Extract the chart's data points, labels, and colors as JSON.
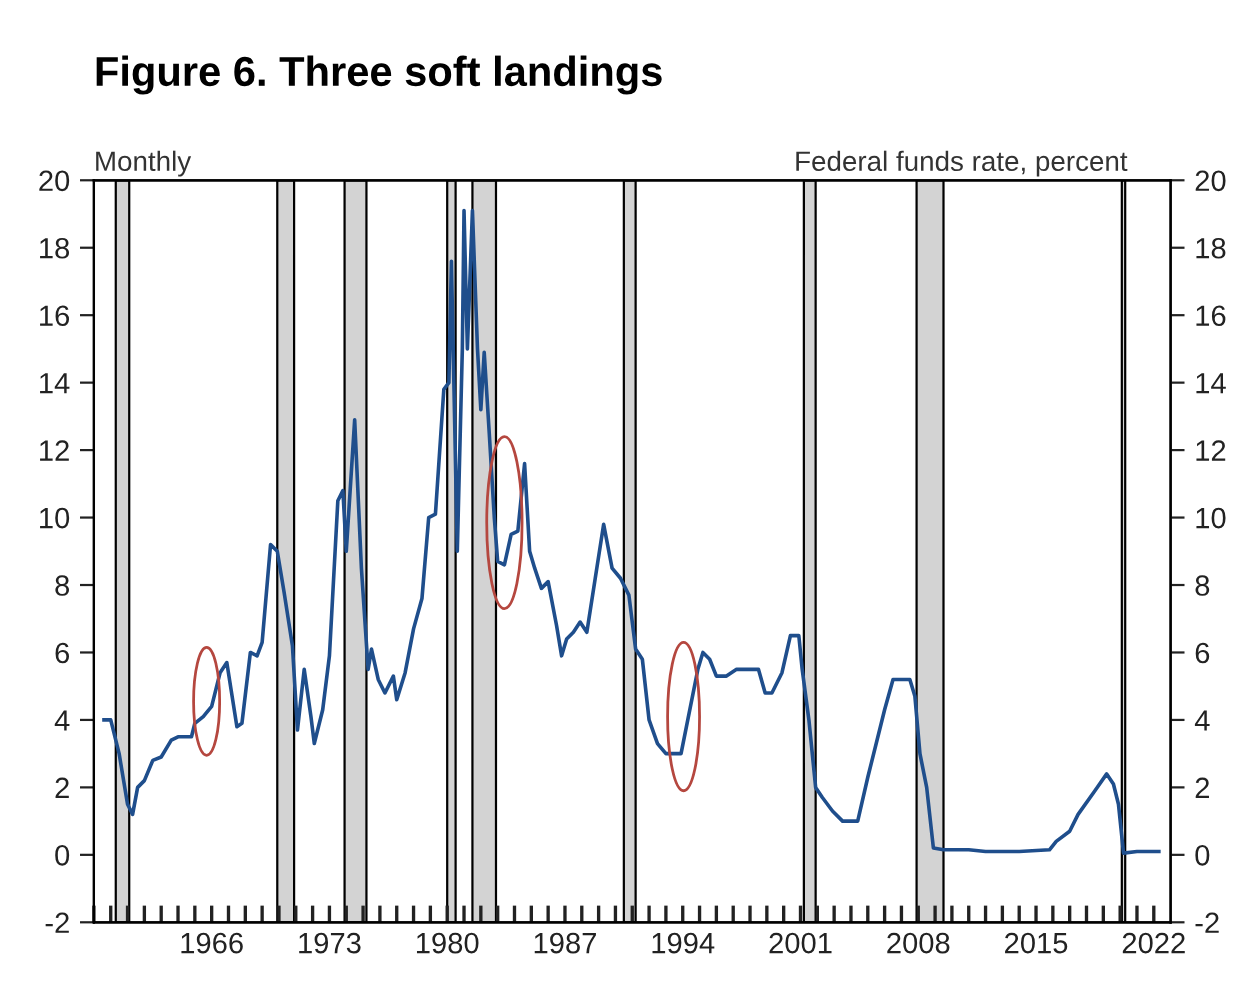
{
  "chart_data": {
    "type": "line",
    "title": "Figure 6. Three soft landings",
    "annotations": [
      "Monthly",
      "Federal funds rate, percent"
    ],
    "series": [
      {
        "color": "#1f4e8c",
        "x": [
          1959.6,
          1960.0,
          1960.5,
          1961.0,
          1961.3,
          1961.6,
          1962.0,
          1962.5,
          1963.0,
          1963.6,
          1964.0,
          1964.8,
          1965.0,
          1965.5,
          1966.0,
          1966.5,
          1966.9,
          1967.5,
          1967.8,
          1968.3,
          1968.7,
          1969.0,
          1969.5,
          1969.9,
          1970.3,
          1970.8,
          1971.1,
          1971.5,
          1971.9,
          1972.1,
          1972.6,
          1973.0,
          1973.5,
          1973.8,
          1974.0,
          1974.5,
          1974.9,
          1975.3,
          1975.5,
          1975.9,
          1976.3,
          1976.8,
          1977.0,
          1977.5,
          1978.0,
          1978.5,
          1978.9,
          1979.3,
          1979.8,
          1980.1,
          1980.25,
          1980.6,
          1980.9,
          1981.0,
          1981.2,
          1981.5,
          1981.8,
          1982.0,
          1982.2,
          1982.5,
          1982.8,
          1983.0,
          1983.4,
          1983.8,
          1984.2,
          1984.6,
          1984.9,
          1985.2,
          1985.6,
          1986.0,
          1986.5,
          1986.8,
          1987.1,
          1987.5,
          1987.9,
          1988.3,
          1988.8,
          1989.3,
          1989.8,
          1990.3,
          1990.8,
          1991.2,
          1991.6,
          1992.0,
          1992.5,
          1993.0,
          1993.9,
          1994.3,
          1994.9,
          1995.2,
          1995.6,
          1996.0,
          1996.6,
          1997.2,
          1998.5,
          1998.9,
          1999.3,
          1999.9,
          2000.4,
          2000.9,
          2001.1,
          2001.5,
          2001.9,
          2002.3,
          2002.9,
          2003.5,
          2004.4,
          2005.0,
          2006.0,
          2006.5,
          2007.5,
          2007.8,
          2008.1,
          2008.5,
          2008.9,
          2009.5,
          2011.0,
          2012.0,
          2014.0,
          2015.8,
          2016.2,
          2017.0,
          2017.5,
          2018.5,
          2019.2,
          2019.6,
          2019.9,
          2020.2,
          2021.0,
          2022.0,
          2022.3
        ],
        "values": [
          4.0,
          4.0,
          3.0,
          1.5,
          1.2,
          2.0,
          2.2,
          2.8,
          2.9,
          3.4,
          3.5,
          3.5,
          3.9,
          4.1,
          4.4,
          5.4,
          5.7,
          3.8,
          3.9,
          6.0,
          5.9,
          6.3,
          9.2,
          9.0,
          7.8,
          6.2,
          3.7,
          5.5,
          4.1,
          3.3,
          4.3,
          5.9,
          10.5,
          10.8,
          9.0,
          12.9,
          8.5,
          5.5,
          6.1,
          5.2,
          4.8,
          5.3,
          4.6,
          5.4,
          6.7,
          7.6,
          10.0,
          10.1,
          13.8,
          14.0,
          17.6,
          9.0,
          15.0,
          19.1,
          15.0,
          19.1,
          15.0,
          13.2,
          14.9,
          12.5,
          10.0,
          8.7,
          8.6,
          9.5,
          9.6,
          11.6,
          9.0,
          8.5,
          7.9,
          8.1,
          6.8,
          5.9,
          6.4,
          6.6,
          6.9,
          6.6,
          8.2,
          9.8,
          8.5,
          8.2,
          7.7,
          6.1,
          5.8,
          4.0,
          3.3,
          3.0,
          3.0,
          4.0,
          5.5,
          6.0,
          5.8,
          5.3,
          5.3,
          5.5,
          5.5,
          4.8,
          4.8,
          5.4,
          6.5,
          6.5,
          5.5,
          4.0,
          2.0,
          1.7,
          1.3,
          1.0,
          1.0,
          2.3,
          4.3,
          5.2,
          5.2,
          4.7,
          3.0,
          2.0,
          0.2,
          0.15,
          0.15,
          0.1,
          0.1,
          0.15,
          0.4,
          0.7,
          1.2,
          1.9,
          2.4,
          2.1,
          1.5,
          0.05,
          0.1,
          0.1,
          0.1
        ]
      }
    ],
    "xlim": [
      1959,
      2023
    ],
    "xticks": [
      {
        "value": 1959,
        "label": null
      },
      {
        "value": 1960,
        "label": null
      },
      {
        "value": 1961,
        "label": null
      },
      {
        "value": 1962,
        "label": null
      },
      {
        "value": 1963,
        "label": null
      },
      {
        "value": 1964,
        "label": null
      },
      {
        "value": 1965,
        "label": null
      },
      1966,
      {
        "value": 1967,
        "label": null
      },
      {
        "value": 1968,
        "label": null
      },
      {
        "value": 1969,
        "label": null
      },
      {
        "value": 1970,
        "label": null
      },
      {
        "value": 1971,
        "label": null
      },
      {
        "value": 1972,
        "label": null
      },
      1973,
      {
        "value": 1974,
        "label": null
      },
      {
        "value": 1975,
        "label": null
      },
      {
        "value": 1976,
        "label": null
      },
      {
        "value": 1977,
        "label": null
      },
      {
        "value": 1978,
        "label": null
      },
      {
        "value": 1979,
        "label": null
      },
      1980,
      {
        "value": 1981,
        "label": null
      },
      {
        "value": 1982,
        "label": null
      },
      {
        "value": 1983,
        "label": null
      },
      {
        "value": 1984,
        "label": null
      },
      {
        "value": 1985,
        "label": null
      },
      {
        "value": 1986,
        "label": null
      },
      1987,
      {
        "value": 1988,
        "label": null
      },
      {
        "value": 1989,
        "label": null
      },
      {
        "value": 1990,
        "label": null
      },
      {
        "value": 1991,
        "label": null
      },
      {
        "value": 1992,
        "label": null
      },
      {
        "value": 1993,
        "label": null
      },
      1994,
      {
        "value": 1995,
        "label": null
      },
      {
        "value": 1996,
        "label": null
      },
      {
        "value": 1997,
        "label": null
      },
      {
        "value": 1998,
        "label": null
      },
      {
        "value": 1999,
        "label": null
      },
      {
        "value": 2000,
        "label": null
      },
      2001,
      {
        "value": 2002,
        "label": null
      },
      {
        "value": 2003,
        "label": null
      },
      {
        "value": 2004,
        "label": null
      },
      {
        "value": 2005,
        "label": null
      },
      {
        "value": 2006,
        "label": null
      },
      {
        "value": 2007,
        "label": null
      },
      2008,
      {
        "value": 2009,
        "label": null
      },
      {
        "value": 2010,
        "label": null
      },
      {
        "value": 2011,
        "label": null
      },
      {
        "value": 2012,
        "label": null
      },
      {
        "value": 2013,
        "label": null
      },
      {
        "value": 2014,
        "label": null
      },
      2015,
      {
        "value": 2016,
        "label": null
      },
      {
        "value": 2017,
        "label": null
      },
      {
        "value": 2018,
        "label": null
      },
      {
        "value": 2019,
        "label": null
      },
      {
        "value": 2020,
        "label": null
      },
      {
        "value": 2021,
        "label": null
      },
      2022
    ],
    "ylim": [
      -2,
      20
    ],
    "yticks": [
      -2,
      0,
      2,
      4,
      6,
      8,
      10,
      12,
      14,
      16,
      18,
      20
    ],
    "y2lim": [
      -2,
      20
    ],
    "y2ticks": [
      -2,
      0,
      2,
      4,
      6,
      8,
      10,
      12,
      14,
      16,
      18,
      20
    ],
    "bands": [
      {
        "axis": "x",
        "from": 1960.3,
        "to": 1961.1,
        "color": "#d3d3d3"
      },
      {
        "axis": "x",
        "from": 1969.9,
        "to": 1970.9,
        "color": "#d3d3d3"
      },
      {
        "axis": "x",
        "from": 1973.9,
        "to": 1975.2,
        "color": "#d3d3d3"
      },
      {
        "axis": "x",
        "from": 1980.0,
        "to": 1980.5,
        "color": "#d3d3d3"
      },
      {
        "axis": "x",
        "from": 1981.5,
        "to": 1982.9,
        "color": "#d3d3d3"
      },
      {
        "axis": "x",
        "from": 1990.5,
        "to": 1991.2,
        "color": "#d3d3d3"
      },
      {
        "axis": "x",
        "from": 2001.2,
        "to": 2001.9,
        "color": "#d3d3d3"
      },
      {
        "axis": "x",
        "from": 2007.9,
        "to": 2009.5,
        "color": "#d3d3d3"
      },
      {
        "axis": "x",
        "from": 2020.1,
        "to": 2020.3,
        "color": "#d3d3d3"
      }
    ],
    "grid": false
  }
}
